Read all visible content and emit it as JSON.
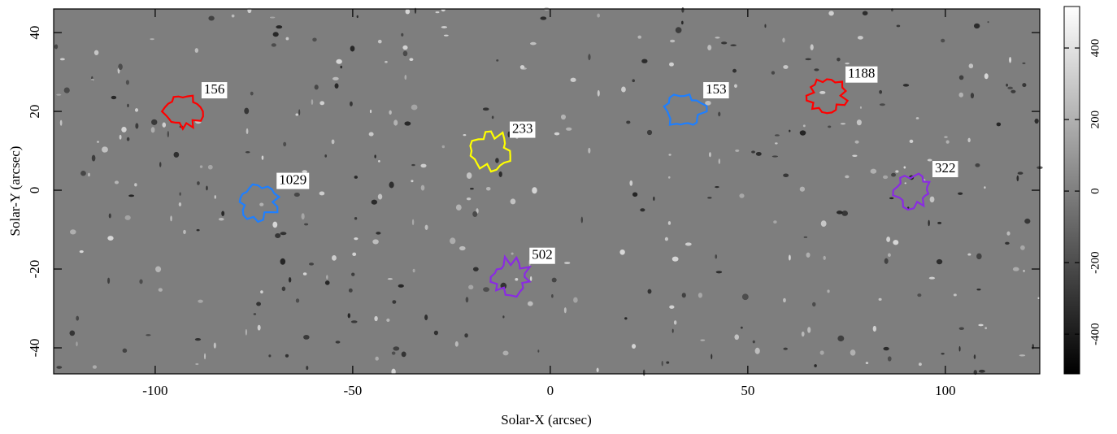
{
  "chart_data": {
    "type": "image",
    "xlabel": "Solar-X (arcsec)",
    "ylabel": "Solar-Y (arcsec)",
    "xlim": [
      -125.7,
      123.9
    ],
    "ylim": [
      -46.6,
      46
    ],
    "xticks": [
      -100,
      -50,
      0,
      50,
      100
    ],
    "yticks": [
      -40,
      -20,
      0,
      20,
      40
    ],
    "clim": [
      -511,
      516
    ],
    "cticks": [
      -400,
      -200,
      0,
      200,
      400
    ],
    "regions": [
      {
        "label": "156",
        "x": -93,
        "y": 20,
        "color": "#ff0000"
      },
      {
        "label": "1029",
        "x": -74,
        "y": -3,
        "color": "#1e7fff"
      },
      {
        "label": "233",
        "x": -15,
        "y": 10,
        "color": "#ffff00"
      },
      {
        "label": "502",
        "x": -10,
        "y": -22,
        "color": "#8a2be2"
      },
      {
        "label": "153",
        "x": 34,
        "y": 20,
        "color": "#1e7fff"
      },
      {
        "label": "1188",
        "x": 70,
        "y": 24,
        "color": "#ff0000"
      },
      {
        "label": "322",
        "x": 92,
        "y": 0,
        "color": "#8a2be2"
      }
    ]
  }
}
